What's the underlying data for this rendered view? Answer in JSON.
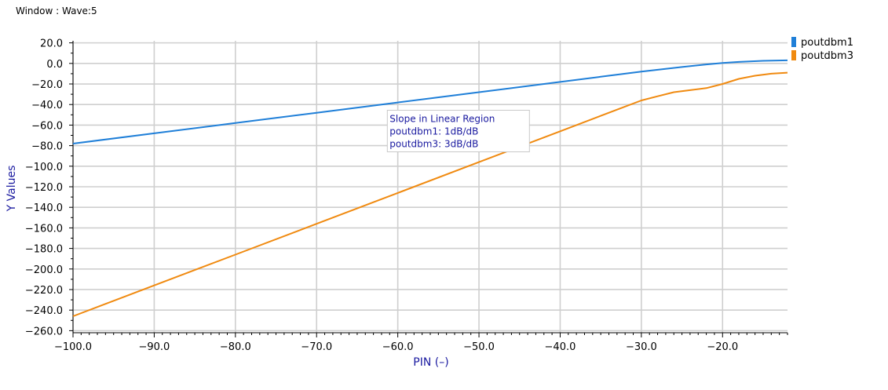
{
  "window": {
    "title": "Window : Wave:5"
  },
  "chart_data": {
    "type": "line",
    "xlabel": "PIN (–)",
    "ylabel": "Y Values",
    "xlim": [
      -100,
      -12
    ],
    "ylim": [
      -262,
      22
    ],
    "x_ticks": [
      -100,
      -90,
      -80,
      -70,
      -60,
      -50,
      -40,
      -30,
      -20
    ],
    "x_tick_labels": [
      "−100.0",
      "−90.0",
      "−80.0",
      "−70.0",
      "−60.0",
      "−50.0",
      "−40.0",
      "−30.0",
      "−20.0"
    ],
    "y_ticks": [
      20,
      0,
      -20,
      -40,
      -60,
      -80,
      -100,
      -120,
      -140,
      -160,
      -180,
      -200,
      -220,
      -240,
      -260
    ],
    "y_tick_labels": [
      "20.0",
      "0.0",
      "−20.0",
      "−40.0",
      "−60.0",
      "−80.0",
      "−100.0",
      "−120.0",
      "−140.0",
      "−160.0",
      "−180.0",
      "−200.0",
      "−220.0",
      "−240.0",
      "−260.0"
    ],
    "grid": true,
    "legend_position": "top-right",
    "series": [
      {
        "name": "poutdbm1",
        "color": "#1f7fd8",
        "x": [
          -100,
          -90,
          -80,
          -70,
          -60,
          -50,
          -40,
          -35,
          -30,
          -25,
          -22,
          -20,
          -18,
          -15,
          -12
        ],
        "y": [
          -78,
          -68,
          -58,
          -48,
          -38,
          -28,
          -18,
          -13,
          -8,
          -3.5,
          -1,
          0.5,
          1.5,
          2.5,
          3
        ]
      },
      {
        "name": "poutdbm3",
        "color": "#f08a10",
        "x": [
          -100,
          -90,
          -80,
          -70,
          -60,
          -50,
          -40,
          -35,
          -32,
          -30,
          -28,
          -26,
          -24,
          -22,
          -20,
          -18,
          -16,
          -14,
          -12
        ],
        "y": [
          -246,
          -216,
          -186,
          -156,
          -126,
          -96,
          -66,
          -51,
          -42,
          -36,
          -32,
          -28,
          -26,
          -24,
          -20,
          -15,
          -12,
          -10,
          -9
        ]
      }
    ],
    "annotation": {
      "lines": [
        "Slope in Linear Region",
        "poutdbm1: 1dB/dB",
        "poutdbm3: 3dB/dB"
      ],
      "anchor": {
        "x": -61,
        "y": -57
      }
    }
  }
}
